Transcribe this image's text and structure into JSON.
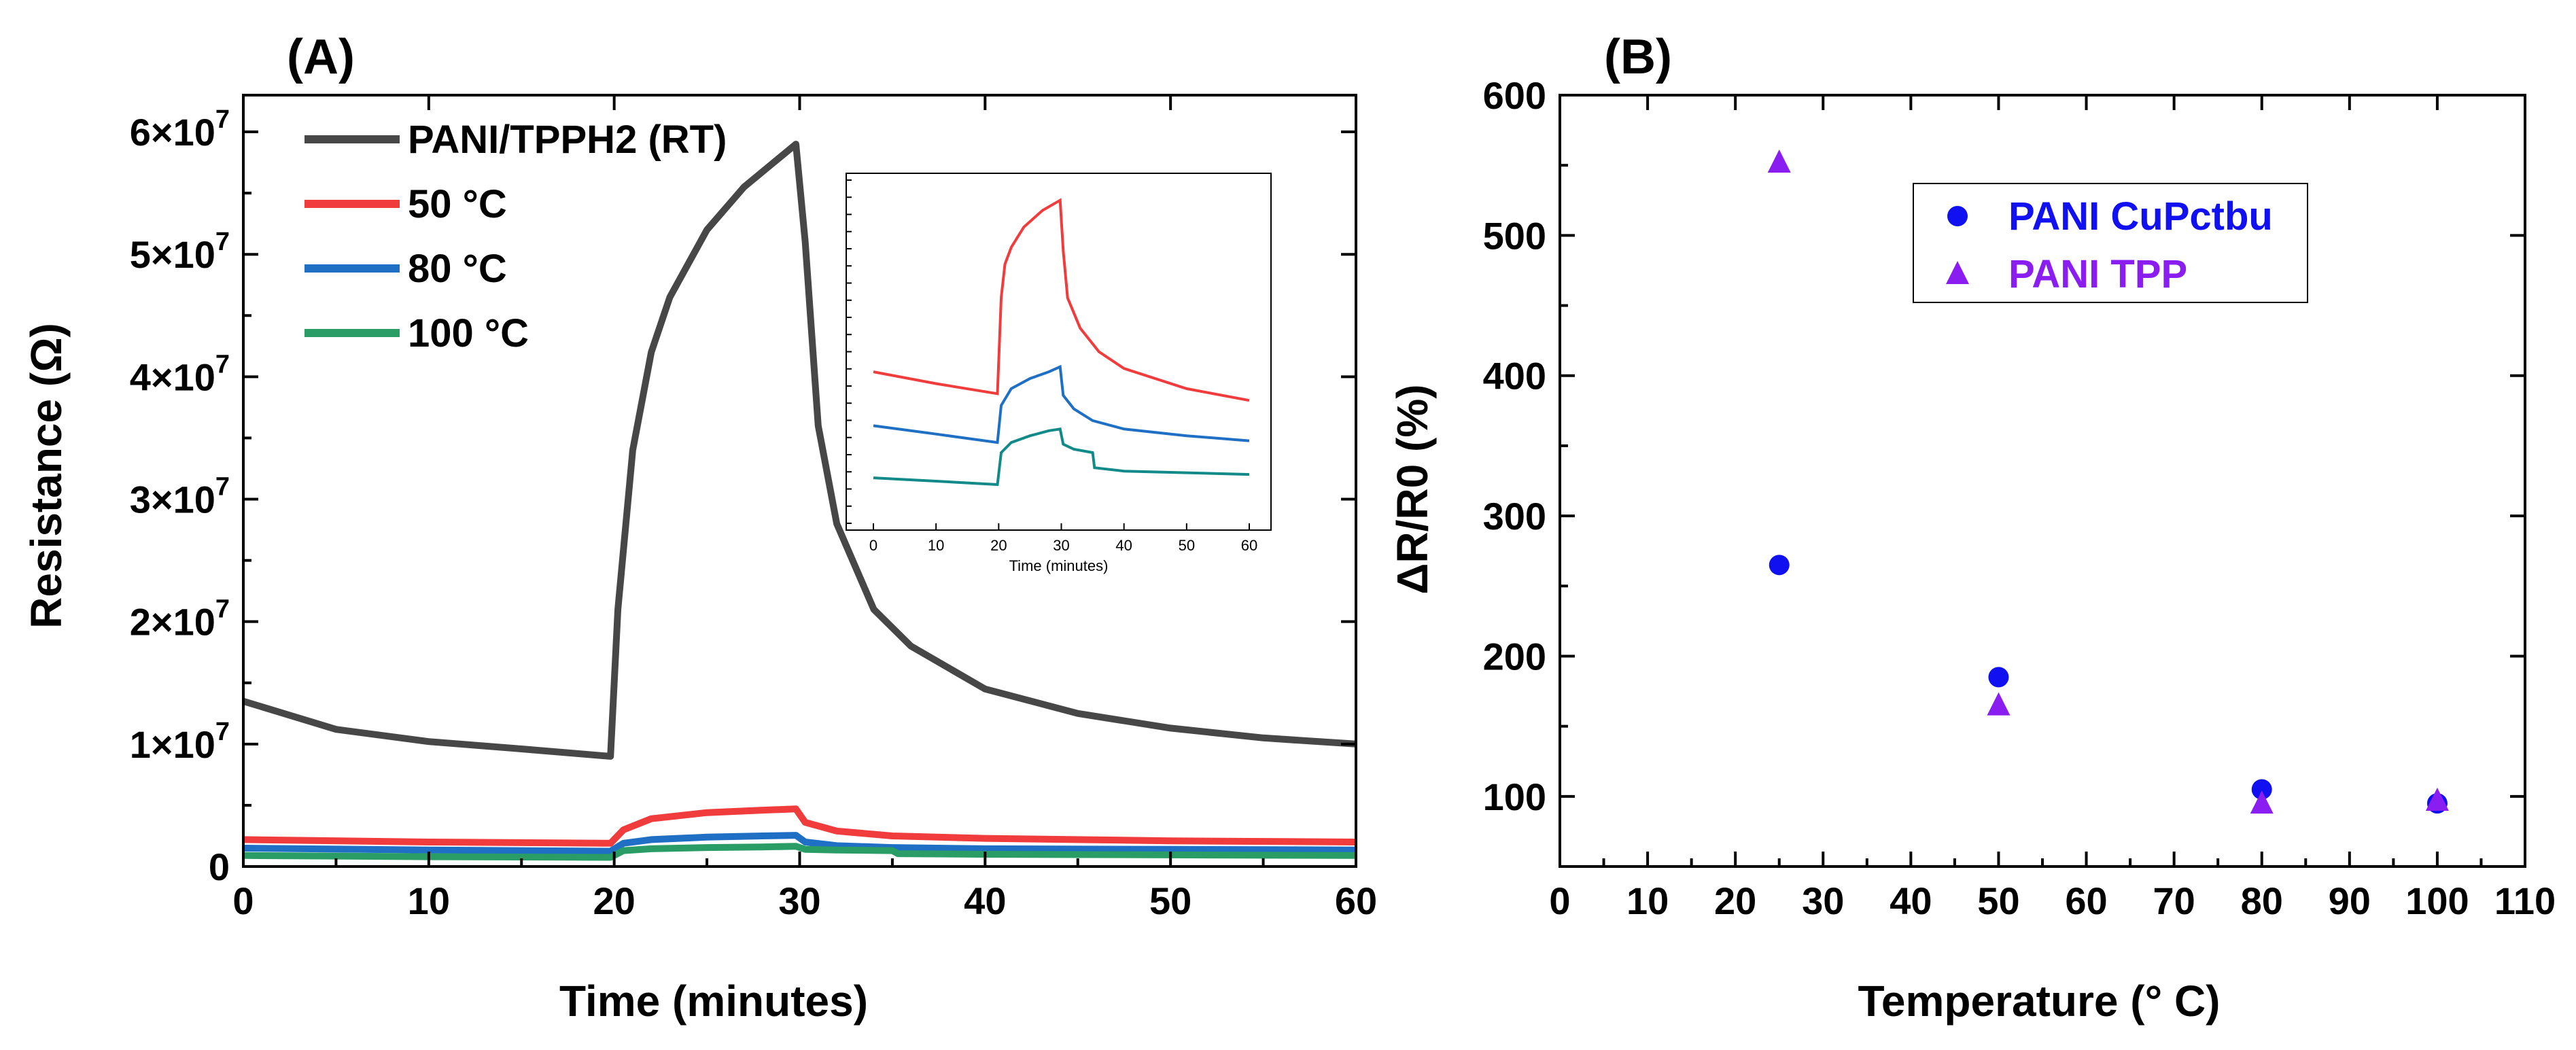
{
  "chart_data": [
    {
      "type": "line",
      "panel_label": "(A)",
      "xlabel": "Time (minutes)",
      "ylabel": "Resistance (Ω)",
      "xlim": [
        0,
        60
      ],
      "ylim": [
        0,
        63000000
      ],
      "xticks": [
        0,
        10,
        20,
        30,
        40,
        50,
        60
      ],
      "xtick_labels": [
        "0",
        "10",
        "20",
        "30",
        "40",
        "50",
        "60"
      ],
      "yticks": [
        0,
        10000000,
        20000000,
        30000000,
        40000000,
        50000000,
        60000000
      ],
      "ytick_labels": [
        {
          "mant": "0",
          "exp": ""
        },
        {
          "mant": "1×10",
          "exp": "7"
        },
        {
          "mant": "2×10",
          "exp": "7"
        },
        {
          "mant": "3×10",
          "exp": "7"
        },
        {
          "mant": "4×10",
          "exp": "7"
        },
        {
          "mant": "5×10",
          "exp": "7"
        },
        {
          "mant": "6×10",
          "exp": "7"
        }
      ],
      "legend_position": "top-left",
      "series": [
        {
          "name": "PANI/TPPH2 (RT)",
          "color": "#474747",
          "x": [
            0,
            5,
            10,
            15,
            19.8,
            20.2,
            21,
            22,
            23,
            25,
            27,
            29,
            29.8,
            30.3,
            31,
            32,
            34,
            36,
            40,
            45,
            50,
            55,
            60
          ],
          "y": [
            13500000,
            11200000,
            10200000,
            9600000,
            9000000,
            21000000,
            34000000,
            42000000,
            46500000,
            52000000,
            55500000,
            58000000,
            59000000,
            51000000,
            36000000,
            28000000,
            21000000,
            18000000,
            14500000,
            12500000,
            11300000,
            10500000,
            10000000
          ]
        },
        {
          "name": "50 °C",
          "color": "#f03c3c",
          "x": [
            0,
            10,
            19.8,
            20.5,
            22,
            25,
            28,
            29.8,
            30.3,
            32,
            35,
            40,
            50,
            60
          ],
          "y": [
            2200000,
            2000000,
            1900000,
            3000000,
            3900000,
            4400000,
            4600000,
            4700000,
            3600000,
            2900000,
            2500000,
            2300000,
            2100000,
            2000000
          ]
        },
        {
          "name": "80 °C",
          "color": "#1f6fc4",
          "x": [
            0,
            10,
            19.8,
            20.5,
            22,
            25,
            28,
            29.8,
            30.3,
            32,
            35,
            40,
            50,
            60
          ],
          "y": [
            1500000,
            1350000,
            1250000,
            1900000,
            2200000,
            2400000,
            2500000,
            2550000,
            2000000,
            1700000,
            1550000,
            1450000,
            1400000,
            1350000
          ]
        },
        {
          "name": "100 °C",
          "color": "#2a9d66",
          "x": [
            0,
            10,
            19.8,
            20.5,
            22,
            25,
            28,
            29.8,
            30.3,
            32,
            35,
            35.3,
            40,
            50,
            60
          ],
          "y": [
            900000,
            800000,
            750000,
            1300000,
            1450000,
            1550000,
            1600000,
            1650000,
            1400000,
            1350000,
            1300000,
            1050000,
            1000000,
            950000,
            900000
          ]
        }
      ],
      "inset": {
        "xlabel": "Time (minutes)",
        "xlim": [
          0,
          60
        ],
        "ylim": [
          0,
          10
        ],
        "xticks": [
          0,
          10,
          20,
          30,
          40,
          50,
          60
        ],
        "xtick_labels": [
          "0",
          "10",
          "20",
          "30",
          "40",
          "50",
          "60"
        ],
        "series": [
          {
            "name": "50 °C",
            "color": "#f03c3c",
            "x": [
              0,
              10,
              19.8,
              20.4,
              21,
              22,
              24,
              27,
              29.8,
              30.3,
              31,
              33,
              36,
              40,
              50,
              60
            ],
            "y": [
              4.3,
              3.95,
              3.65,
              6.5,
              7.5,
              8.0,
              8.6,
              9.1,
              9.4,
              7.9,
              6.5,
              5.6,
              4.9,
              4.4,
              3.8,
              3.45
            ]
          },
          {
            "name": "80 °C",
            "color": "#1f6fc4",
            "x": [
              0,
              10,
              19.8,
              20.4,
              22,
              25,
              28,
              29.8,
              30.3,
              32,
              35,
              40,
              50,
              60
            ],
            "y": [
              2.7,
              2.45,
              2.2,
              3.3,
              3.8,
              4.1,
              4.3,
              4.45,
              3.6,
              3.2,
              2.85,
              2.6,
              2.4,
              2.25
            ]
          },
          {
            "name": "100 °C",
            "color": "#128a8a",
            "x": [
              0,
              10,
              19.8,
              20.4,
              22,
              25,
              28,
              29.8,
              30.3,
              32,
              35,
              35.3,
              40,
              50,
              60
            ],
            "y": [
              1.15,
              1.05,
              0.95,
              1.9,
              2.2,
              2.4,
              2.55,
              2.6,
              2.15,
              2.0,
              1.9,
              1.45,
              1.35,
              1.3,
              1.25
            ]
          }
        ]
      }
    },
    {
      "type": "scatter",
      "panel_label": "(B)",
      "xlabel": "Temperature (° C)",
      "ylabel": "ΔR/R0 (%)",
      "xlim": [
        0,
        110
      ],
      "ylim": [
        50,
        600
      ],
      "xticks": [
        0,
        10,
        20,
        30,
        40,
        50,
        60,
        70,
        80,
        90,
        100,
        110
      ],
      "xtick_labels": [
        "0",
        "10",
        "20",
        "30",
        "40",
        "50",
        "60",
        "70",
        "80",
        "90",
        "100",
        "110"
      ],
      "yticks": [
        100,
        200,
        300,
        400,
        500,
        600
      ],
      "ytick_labels": [
        "100",
        "200",
        "300",
        "400",
        "500",
        "600"
      ],
      "legend_position": "top-center",
      "series": [
        {
          "name": "PANI CuPctbu",
          "color": "#1010f0",
          "marker": "circle",
          "x": [
            25,
            50,
            80,
            100
          ],
          "y": [
            265,
            185,
            105,
            95
          ]
        },
        {
          "name": "PANI TPP",
          "color": "#8a1ef0",
          "marker": "triangle",
          "x": [
            25,
            50,
            80,
            100
          ],
          "y": [
            552,
            165,
            95,
            97
          ]
        }
      ]
    }
  ]
}
